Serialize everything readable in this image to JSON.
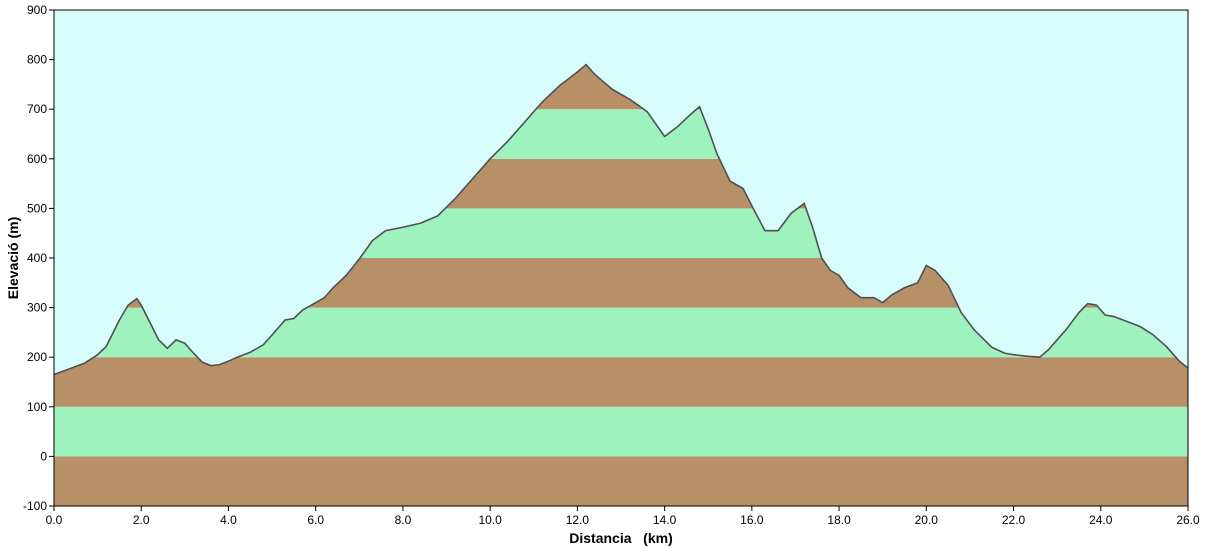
{
  "chart_data": {
    "type": "area",
    "title": "",
    "xlabel": "Distancia   (km)",
    "ylabel": "Elevació   (m)",
    "xlim": [
      0,
      26
    ],
    "ylim": [
      -100,
      900
    ],
    "x_ticks": [
      "0.0",
      "2.0",
      "4.0",
      "6.0",
      "8.0",
      "10.0",
      "12.0",
      "14.0",
      "16.0",
      "18.0",
      "20.0",
      "22.0",
      "24.0",
      "26.0"
    ],
    "x_tick_values": [
      0,
      2,
      4,
      6,
      8,
      10,
      12,
      14,
      16,
      18,
      20,
      22,
      24,
      26
    ],
    "y_ticks": [
      "900",
      "800",
      "700",
      "600",
      "500",
      "400",
      "300",
      "200",
      "100",
      "0",
      "-100"
    ],
    "y_tick_values": [
      900,
      800,
      700,
      600,
      500,
      400,
      300,
      200,
      100,
      0,
      -100
    ],
    "colors": {
      "sky": "#d8fcfc",
      "band_green": "#9ef2be",
      "band_brown": "#b89068",
      "profile_line": "#505050"
    },
    "band_height": 100,
    "grid": false,
    "legend": "none",
    "series": [
      {
        "x": [
          0.0,
          0.15,
          0.4,
          0.7,
          1.0,
          1.2,
          1.5,
          1.7,
          1.9,
          2.0,
          2.2,
          2.4,
          2.6,
          2.8,
          3.0,
          3.2,
          3.4,
          3.6,
          3.8,
          4.0,
          4.2,
          4.5,
          4.8,
          5.0,
          5.3,
          5.5,
          5.7,
          6.0,
          6.2,
          6.4,
          6.7,
          7.0,
          7.3,
          7.6,
          8.0,
          8.4,
          8.8,
          9.2,
          9.6,
          10.0,
          10.4,
          10.8,
          11.2,
          11.6,
          12.0,
          12.2,
          12.4,
          12.8,
          13.2,
          13.6,
          14.0,
          14.3,
          14.6,
          14.8,
          15.0,
          15.2,
          15.5,
          15.8,
          16.0,
          16.3,
          16.6,
          16.9,
          17.2,
          17.4,
          17.6,
          17.8,
          18.0,
          18.2,
          18.5,
          18.8,
          19.0,
          19.2,
          19.5,
          19.8,
          20.0,
          20.2,
          20.5,
          20.8,
          21.1,
          21.5,
          21.8,
          22.0,
          22.3,
          22.6,
          22.8,
          23.0,
          23.2,
          23.5,
          23.7,
          23.9,
          24.1,
          24.3,
          24.6,
          24.9,
          25.2,
          25.5,
          25.8,
          26.0
        ],
        "y": [
          165,
          170,
          178,
          188,
          205,
          222,
          275,
          305,
          318,
          305,
          270,
          235,
          218,
          235,
          228,
          208,
          190,
          183,
          185,
          192,
          200,
          210,
          225,
          245,
          275,
          278,
          295,
          310,
          320,
          340,
          365,
          398,
          435,
          455,
          462,
          470,
          485,
          520,
          560,
          600,
          635,
          675,
          715,
          748,
          775,
          790,
          770,
          740,
          720,
          695,
          645,
          665,
          690,
          705,
          660,
          610,
          555,
          540,
          505,
          455,
          455,
          490,
          510,
          460,
          400,
          375,
          365,
          340,
          320,
          320,
          310,
          325,
          340,
          350,
          385,
          375,
          345,
          290,
          255,
          220,
          208,
          205,
          202,
          200,
          215,
          235,
          255,
          290,
          308,
          305,
          285,
          282,
          272,
          262,
          245,
          222,
          192,
          178
        ]
      }
    ]
  }
}
